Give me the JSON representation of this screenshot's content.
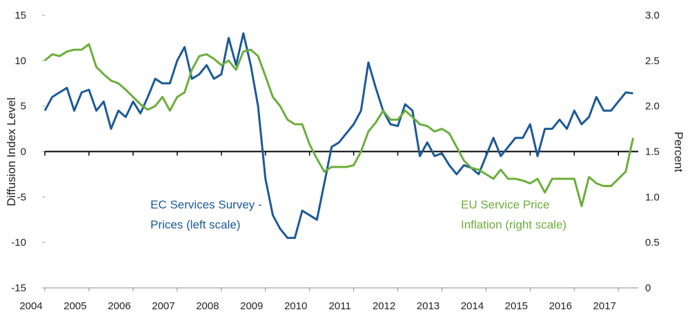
{
  "chart_data": {
    "type": "line",
    "ylabel": "Diffusion Index Level",
    "y2label": "Percent",
    "xlim": [
      2004,
      2017.45
    ],
    "xticks": [
      2004,
      2005,
      2006,
      2007,
      2008,
      2009,
      2010,
      2011,
      2012,
      2013,
      2014,
      2015,
      2016,
      2017
    ],
    "ylim": [
      -15,
      15
    ],
    "yticks": [
      -15,
      -10,
      -5,
      0,
      5,
      10,
      15
    ],
    "y2lim": [
      0,
      3
    ],
    "y2ticks": [
      0,
      0.5,
      {
        "value": 1,
        "label": "1.0"
      },
      1.5,
      {
        "value": 2,
        "label": "2.0"
      },
      2.5,
      {
        "value": 3,
        "label": "3.0"
      }
    ],
    "x": [
      "2004-01",
      "2004-03",
      "2004-05",
      "2004-07",
      "2004-09",
      "2004-11",
      "2005-01",
      "2005-03",
      "2005-05",
      "2005-07",
      "2005-09",
      "2005-11",
      "2006-01",
      "2006-03",
      "2006-05",
      "2006-07",
      "2006-09",
      "2006-11",
      "2007-01",
      "2007-03",
      "2007-05",
      "2007-07",
      "2007-09",
      "2007-11",
      "2008-01",
      "2008-03",
      "2008-05",
      "2008-07",
      "2008-09",
      "2008-11",
      "2009-01",
      "2009-03",
      "2009-05",
      "2009-07",
      "2009-09",
      "2009-11",
      "2010-01",
      "2010-03",
      "2010-05",
      "2010-07",
      "2010-09",
      "2010-11",
      "2011-01",
      "2011-03",
      "2011-05",
      "2011-07",
      "2011-09",
      "2011-11",
      "2012-01",
      "2012-03",
      "2012-05",
      "2012-07",
      "2012-09",
      "2012-11",
      "2013-01",
      "2013-03",
      "2013-05",
      "2013-07",
      "2013-09",
      "2013-11",
      "2014-01",
      "2014-03",
      "2014-05",
      "2014-07",
      "2014-09",
      "2014-11",
      "2015-01",
      "2015-03",
      "2015-05",
      "2015-07",
      "2015-09",
      "2015-11",
      "2016-01",
      "2016-03",
      "2016-05",
      "2016-07",
      "2016-09",
      "2016-11",
      "2017-01",
      "2017-03",
      "2017-05"
    ],
    "series": [
      {
        "name": [
          "EC Services Survey -",
          "Prices (left scale)"
        ],
        "color": "#1b5997",
        "axis": "y",
        "values": [
          4.5,
          6,
          6.5,
          7,
          4.5,
          6.5,
          6.8,
          4.5,
          5.5,
          2.5,
          4.5,
          3.8,
          5.5,
          4.2,
          6,
          8,
          7.5,
          7.5,
          10,
          11.5,
          8,
          8.5,
          9.5,
          8,
          8.5,
          12.5,
          9.5,
          13,
          9.5,
          5,
          -3,
          -7,
          -8.5,
          -9.5,
          -9.5,
          -6.5,
          -7,
          -7.5,
          -3.5,
          0.5,
          1,
          2,
          3,
          4.5,
          9.8,
          7,
          4.5,
          3,
          2.8,
          5.2,
          4.5,
          -0.5,
          1,
          -0.5,
          -0.2,
          -1.5,
          -2.5,
          -1.5,
          -1.8,
          -2.5,
          -0.5,
          1.5,
          -0.5,
          0.5,
          1.5,
          1.5,
          3,
          -0.5,
          2.5,
          2.5,
          3.5,
          2.5,
          4.5,
          3,
          3.8,
          6,
          4.5,
          4.5,
          5.5,
          6.5,
          6.4
        ]
      },
      {
        "name": [
          "EU Service Price",
          "Inflation (right scale)"
        ],
        "color": "#6aae3a",
        "axis": "y2",
        "values": [
          2.5,
          2.57,
          2.55,
          2.6,
          2.62,
          2.62,
          2.68,
          2.43,
          2.35,
          2.28,
          2.25,
          2.18,
          2.1,
          2.02,
          1.96,
          2,
          2.1,
          1.95,
          2.1,
          2.15,
          2.4,
          2.55,
          2.57,
          2.52,
          2.45,
          2.5,
          2.4,
          2.6,
          2.62,
          2.55,
          2.33,
          2.1,
          2,
          1.85,
          1.8,
          1.8,
          1.58,
          1.42,
          1.28,
          1.33,
          1.33,
          1.33,
          1.35,
          1.5,
          1.72,
          1.82,
          1.95,
          1.85,
          1.85,
          1.95,
          1.88,
          1.8,
          1.78,
          1.72,
          1.75,
          1.7,
          1.55,
          1.4,
          1.32,
          1.3,
          1.25,
          1.2,
          1.3,
          1.2,
          1.2,
          1.18,
          1.15,
          1.2,
          1.05,
          1.2,
          1.2,
          1.2,
          1.2,
          0.9,
          1.22,
          1.15,
          1.12,
          1.12,
          1.2,
          1.28,
          1.65
        ]
      }
    ]
  }
}
